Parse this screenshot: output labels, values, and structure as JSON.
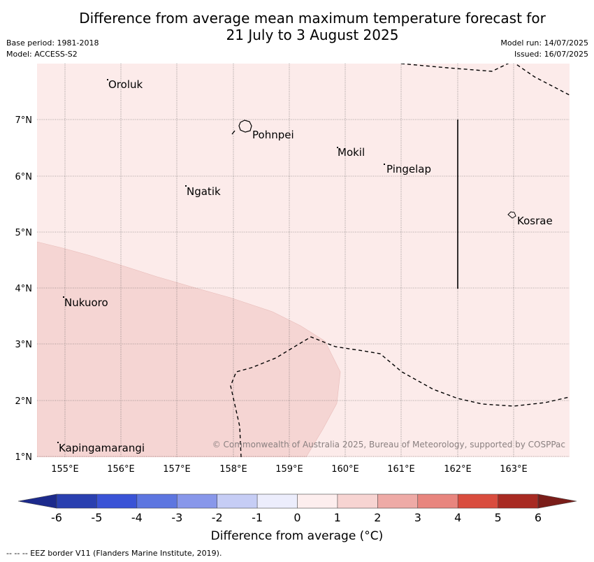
{
  "title": {
    "line1": "Difference from average mean maximum temperature forecast for",
    "line2": "21 July to 3 August 2025"
  },
  "meta": {
    "base_period": "Base period: 1981-2018",
    "model": "Model: ACCESS-S2",
    "model_run": "Model run: 14/07/2025",
    "issued": "Issued: 16/07/2025"
  },
  "map": {
    "lon_ticks": [
      "155°E",
      "156°E",
      "157°E",
      "158°E",
      "159°E",
      "160°E",
      "161°E",
      "162°E",
      "163°E"
    ],
    "lat_ticks": [
      "1°N",
      "2°N",
      "3°N",
      "4°N",
      "5°N",
      "6°N",
      "7°N"
    ],
    "places": [
      {
        "name": "Oroluk"
      },
      {
        "name": "Pohnpei"
      },
      {
        "name": "Mokil"
      },
      {
        "name": "Pingelap"
      },
      {
        "name": "Ngatik"
      },
      {
        "name": "Kosrae"
      },
      {
        "name": "Nukuoro"
      },
      {
        "name": "Kapingamarangi"
      }
    ],
    "copyright": "© Commonwealth of Australia 2025, Bureau of Meteorology, supported by COSPPac",
    "region_colors": {
      "zero_to_one": "#fcebea",
      "one_to_two": "#f5d5d3"
    }
  },
  "legend": {
    "ticks": [
      "-6",
      "-5",
      "-4",
      "-3",
      "-2",
      "-1",
      "0",
      "1",
      "2",
      "3",
      "4",
      "5",
      "6"
    ],
    "colors": [
      "#1c2a8c",
      "#2a40b0",
      "#3a53d6",
      "#5d76e0",
      "#8897ea",
      "#c6cdf5",
      "#ecedfc",
      "#fdeeee",
      "#f7d4d2",
      "#eeaaa6",
      "#e8857e",
      "#d94c3e",
      "#a82a22",
      "#7a1d19"
    ],
    "label": "Difference from average (°C)"
  },
  "footnote": "--  --  -- EEZ border V11 (Flanders Marine Institute, 2019)."
}
